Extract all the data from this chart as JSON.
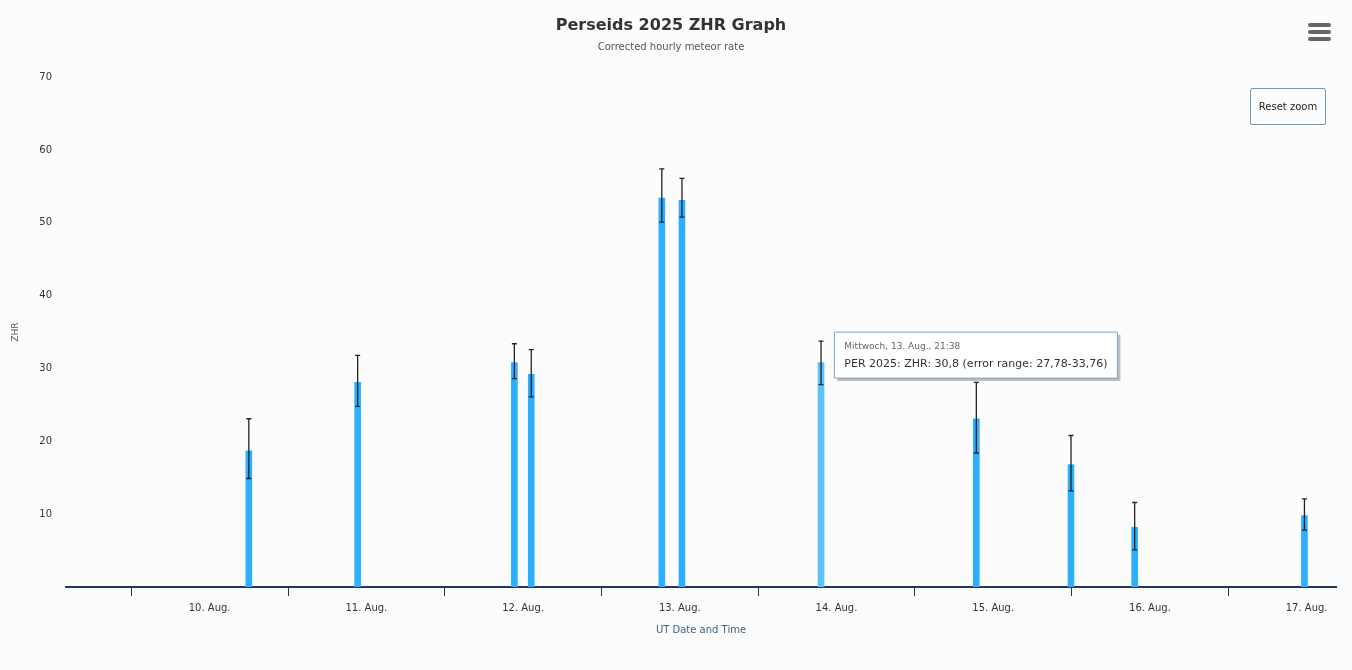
{
  "chart_data": {
    "type": "bar",
    "title": "Perseids 2025 ZHR Graph",
    "subtitle": "Corrected hourly meteor rate",
    "xlabel": "UT Date and Time",
    "ylabel": "ZHR",
    "x": [
      "2025-08-10T06:00",
      "2025-08-10T22:40",
      "2025-08-11T22:40",
      "2025-08-12T01:15",
      "2025-08-12T21:15",
      "2025-08-13T00:20",
      "2025-08-13T21:38",
      "2025-08-14T21:25",
      "2025-08-15T11:55",
      "2025-08-15T21:40",
      "2025-08-16T23:40"
    ],
    "series": [
      {
        "colors": [
          "#2caffe",
          "#2caffe",
          "#2caffe",
          "#2caffe",
          "#2caffe",
          "#2caffe",
          "#5cc2fb",
          "#2caffe",
          "#2caffe",
          "#2caffe",
          "#2caffe"
        ],
        "values": [
          18.7,
          28.1,
          30.8,
          29.2,
          53.4,
          53.1,
          30.8,
          23.1,
          16.8,
          8.2,
          9.8
        ],
        "errors": [
          [
            14.9,
            23.1
          ],
          [
            24.8,
            31.8
          ],
          [
            28.6,
            33.4
          ],
          [
            26.1,
            32.6
          ],
          [
            50.1,
            57.4
          ],
          [
            50.8,
            56.1
          ],
          [
            27.78,
            33.76
          ],
          [
            18.4,
            28.1
          ],
          [
            13.2,
            20.8
          ],
          [
            5.1,
            11.6
          ],
          [
            7.8,
            12.1
          ]
        ]
      }
    ],
    "xlim": [
      "2025-08-09T02:00",
      "2025-08-17T04:30"
    ],
    "xticks": [
      {
        "value": "2025-08-10",
        "label": "10. Aug."
      },
      {
        "value": "2025-08-11",
        "label": "11. Aug."
      },
      {
        "value": "2025-08-12",
        "label": "12. Aug."
      },
      {
        "value": "2025-08-13",
        "label": "13. Aug."
      },
      {
        "value": "2025-08-14",
        "label": "14. Aug."
      },
      {
        "value": "2025-08-15",
        "label": "15. Aug."
      },
      {
        "value": "2025-08-16",
        "label": "16. Aug."
      },
      {
        "value": "2025-08-17",
        "label": "17. Aug."
      }
    ],
    "ylim": [
      0,
      70
    ],
    "yticks": [
      10,
      20,
      30,
      40,
      50,
      60,
      70
    ],
    "grid": false,
    "legend": false,
    "annotations": [
      "Reset zoom",
      "Mittwoch, 13. Aug., 21:38",
      "PER 2025: ZHR: 30,8 (error range: 27,78-33,76)"
    ]
  }
}
